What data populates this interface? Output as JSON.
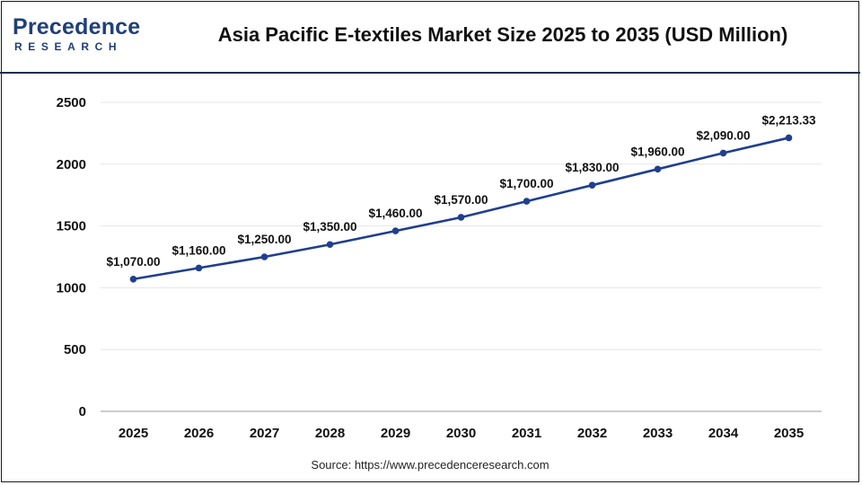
{
  "header": {
    "logo_text_top": "Precedence",
    "logo_text_bottom": "RESEARCH",
    "title": "Asia Pacific E-textiles Market Size 2025 to 2035 (USD Million)"
  },
  "footer": {
    "source": "Source: https://www.precedenceresearch.com"
  },
  "colors": {
    "line": "#1f3f8f",
    "grid": "#e6e6e6",
    "logo": "#1f3f7a"
  },
  "chart_data": {
    "type": "line",
    "title": "Asia Pacific E-textiles Market Size 2025 to 2035 (USD Million)",
    "xlabel": "",
    "ylabel": "",
    "categories": [
      "2025",
      "2026",
      "2027",
      "2028",
      "2029",
      "2030",
      "2031",
      "2032",
      "2033",
      "2034",
      "2035"
    ],
    "series": [
      {
        "values": [
          1070.0,
          1160.0,
          1250.0,
          1350.0,
          1460.0,
          1570.0,
          1700.0,
          1830.0,
          1960.0,
          2090.0,
          2213.33
        ],
        "labels": [
          "$1,070.00",
          "$1,160.00",
          "$1,250.00",
          "$1,350.00",
          "$1,460.00",
          "$1,570.00",
          "$1,700.00",
          "$1,830.00",
          "$1,960.00",
          "$2,090.00",
          "$2,213.33"
        ]
      }
    ],
    "ylim": [
      0,
      2500
    ],
    "yticks": [
      "0",
      "500",
      "1000",
      "1500",
      "2000",
      "2500"
    ],
    "grid": true,
    "legend": "none"
  }
}
